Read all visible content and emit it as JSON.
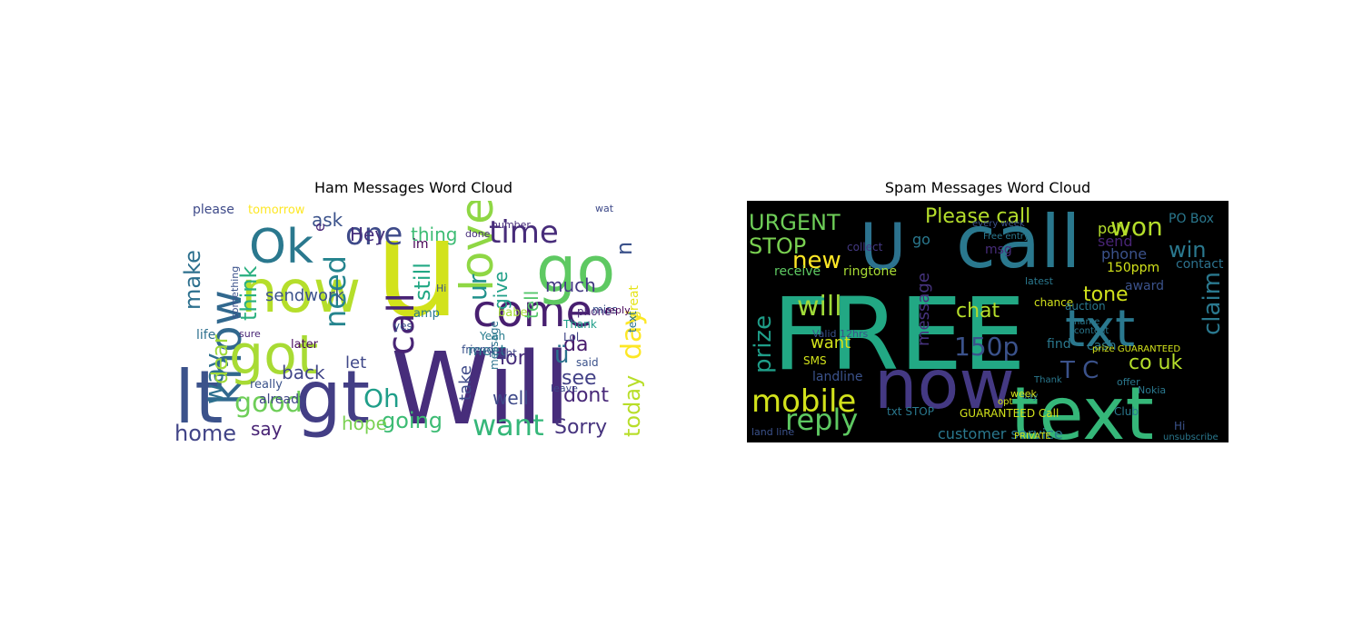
{
  "chart_data": [
    {
      "type": "wordcloud",
      "title": "Ham Messages Word Cloud",
      "background": "#ffffff",
      "palette": "viridis",
      "words": [
        {
          "text": "u",
          "color": "#d2e21b"
        },
        {
          "text": "Will",
          "color": "#472d7b"
        },
        {
          "text": "gt",
          "color": "#433e85"
        },
        {
          "text": "lt",
          "color": "#3b528b"
        },
        {
          "text": "Ok",
          "color": "#2a788e"
        },
        {
          "text": "know",
          "color": "#31688e"
        },
        {
          "text": "now",
          "color": "#b5de2b"
        },
        {
          "text": "got",
          "color": "#a8db34"
        },
        {
          "text": "come",
          "color": "#481f70"
        },
        {
          "text": "go",
          "color": "#5ec962"
        },
        {
          "text": "love",
          "color": "#8fd744"
        },
        {
          "text": "call",
          "color": "#482475"
        },
        {
          "text": "time",
          "color": "#472c7a"
        },
        {
          "text": "one",
          "color": "#3e4a89"
        },
        {
          "text": "want",
          "color": "#35b779"
        },
        {
          "text": "day",
          "color": "#fde725"
        },
        {
          "text": "need",
          "color": "#25848e"
        },
        {
          "text": "going",
          "color": "#3dbc74"
        },
        {
          "text": "good",
          "color": "#6ece58"
        },
        {
          "text": "home",
          "color": "#414487"
        },
        {
          "text": "Sorry",
          "color": "#46337e"
        },
        {
          "text": "today",
          "color": "#b8de29"
        },
        {
          "text": "still",
          "color": "#22a884"
        },
        {
          "text": "think",
          "color": "#29af7f"
        },
        {
          "text": "back",
          "color": "#404588"
        },
        {
          "text": "say",
          "color": "#482475"
        },
        {
          "text": "see",
          "color": "#424086"
        },
        {
          "text": "dont",
          "color": "#482878"
        },
        {
          "text": "ur",
          "color": "#21918c"
        },
        {
          "text": "way",
          "color": "#2d708e"
        },
        {
          "text": "n",
          "color": "#3b528b"
        },
        {
          "text": "sendwork",
          "color": "#3b528b"
        },
        {
          "text": "well",
          "color": "#3e4989"
        },
        {
          "text": "hope",
          "color": "#7ad151"
        },
        {
          "text": "Oh",
          "color": "#1f9e89"
        },
        {
          "text": "much",
          "color": "#443983"
        },
        {
          "text": "lor",
          "color": "#472d7b"
        },
        {
          "text": "da",
          "color": "#481b6d"
        },
        {
          "text": "ü",
          "color": "#2c728e"
        },
        {
          "text": "give",
          "color": "#1fa088"
        },
        {
          "text": "tell",
          "color": "#52c569"
        },
        {
          "text": "let",
          "color": "#3f4788"
        },
        {
          "text": "Hey",
          "color": "#46307e"
        },
        {
          "text": "dear",
          "color": "#a0da39"
        },
        {
          "text": "make",
          "color": "#2d708e"
        },
        {
          "text": "thing",
          "color": "#3dbc74"
        },
        {
          "text": "ask",
          "color": "#3b528b"
        },
        {
          "text": "e",
          "color": "#482677"
        },
        {
          "text": "take",
          "color": "#3e4a89"
        },
        {
          "text": "meet",
          "color": "#2a788e"
        },
        {
          "text": "im",
          "color": "#440154"
        },
        {
          "text": "please",
          "color": "#3e4a89"
        },
        {
          "text": "tomorrow",
          "color": "#fde725"
        },
        {
          "text": "already",
          "color": "#414487"
        },
        {
          "text": "really",
          "color": "#3b528b"
        },
        {
          "text": "later",
          "color": "#46085c"
        },
        {
          "text": "night",
          "color": "#404588"
        },
        {
          "text": "message",
          "color": "#2c738e"
        },
        {
          "text": "friend",
          "color": "#3b528b"
        },
        {
          "text": "Yeah",
          "color": "#287c8e"
        },
        {
          "text": "babe",
          "color": "#a5db36"
        },
        {
          "text": "Thank",
          "color": "#1f9e89"
        },
        {
          "text": "phone",
          "color": "#482475"
        },
        {
          "text": "Lol",
          "color": "#404588"
        },
        {
          "text": "miss",
          "color": "#3b528b"
        },
        {
          "text": "said",
          "color": "#3b528b"
        },
        {
          "text": "amp",
          "color": "#2a788e"
        },
        {
          "text": "wat",
          "color": "#3e4a89"
        },
        {
          "text": "done",
          "color": "#472d7b"
        },
        {
          "text": "number",
          "color": "#472c7a"
        },
        {
          "text": "Hi",
          "color": "#3b528b"
        },
        {
          "text": "life",
          "color": "#2d708e"
        },
        {
          "text": "something",
          "color": "#3b528b"
        },
        {
          "text": "great",
          "color": "#e5e419"
        },
        {
          "text": "text",
          "color": "#2c728e"
        },
        {
          "text": "reply",
          "color": "#440154"
        },
        {
          "text": "sure",
          "color": "#482475"
        },
        {
          "text": "leave",
          "color": "#3e4a89"
        },
        {
          "text": "yes",
          "color": "#3b528b"
        }
      ]
    },
    {
      "type": "wordcloud",
      "title": "Spam Messages Word Cloud",
      "background": "#000000",
      "palette": "viridis",
      "words": [
        {
          "text": "FREE",
          "color": "#22a884"
        },
        {
          "text": "now",
          "color": "#443983"
        },
        {
          "text": "text",
          "color": "#35b779"
        },
        {
          "text": "call",
          "color": "#2a788e"
        },
        {
          "text": "txt",
          "color": "#2a788e"
        },
        {
          "text": "U",
          "color": "#2c728e"
        },
        {
          "text": "mobile",
          "color": "#d2e21b"
        },
        {
          "text": "reply",
          "color": "#5ec962"
        },
        {
          "text": "claim",
          "color": "#2a788e"
        },
        {
          "text": "won",
          "color": "#b5de2b"
        },
        {
          "text": "STOP",
          "color": "#7ad151"
        },
        {
          "text": "URGENT",
          "color": "#6ece58"
        },
        {
          "text": "Please call",
          "color": "#b5de2b"
        },
        {
          "text": "win",
          "color": "#2a788e"
        },
        {
          "text": "new",
          "color": "#fde725"
        },
        {
          "text": "will",
          "color": "#a0da39"
        },
        {
          "text": "150p",
          "color": "#3b528b"
        },
        {
          "text": "chat",
          "color": "#b5de2b"
        },
        {
          "text": "tone",
          "color": "#d2e21b"
        },
        {
          "text": "prize",
          "color": "#1f9e89"
        },
        {
          "text": "T C",
          "color": "#3b528b"
        },
        {
          "text": "co uk",
          "color": "#b5de2b"
        },
        {
          "text": "message",
          "color": "#46337e"
        },
        {
          "text": "want",
          "color": "#d2e21b"
        },
        {
          "text": "customer service",
          "color": "#2a788e"
        },
        {
          "text": "ringtone",
          "color": "#a8db34"
        },
        {
          "text": "receive",
          "color": "#5ec962"
        },
        {
          "text": "go",
          "color": "#2a788e"
        },
        {
          "text": "send",
          "color": "#482475"
        },
        {
          "text": "phone",
          "color": "#3b528b"
        },
        {
          "text": "poly",
          "color": "#b5de2b"
        },
        {
          "text": "PO Box",
          "color": "#2a788e"
        },
        {
          "text": "contact U",
          "color": "#2c728e"
        },
        {
          "text": "150ppm",
          "color": "#d2e21b"
        },
        {
          "text": "award",
          "color": "#3b528b"
        },
        {
          "text": "GUARANTEED Call",
          "color": "#d2e21b"
        },
        {
          "text": "landline",
          "color": "#3b528b"
        },
        {
          "text": "SMS",
          "color": "#d2e21b"
        },
        {
          "text": "collect",
          "color": "#443983"
        },
        {
          "text": "msg",
          "color": "#472d7b"
        },
        {
          "text": "find",
          "color": "#2a788e"
        },
        {
          "text": "cash",
          "color": "#2a788e"
        },
        {
          "text": "chance",
          "color": "#d2e21b"
        },
        {
          "text": "latest",
          "color": "#2a788e"
        },
        {
          "text": "auction",
          "color": "#2a788e"
        },
        {
          "text": "prize GUARANTEED",
          "color": "#d2e21b"
        },
        {
          "text": "Valid 12hrs",
          "color": "#3b528b"
        },
        {
          "text": "Club",
          "color": "#2a788e"
        },
        {
          "text": "Nokia",
          "color": "#2a788e"
        },
        {
          "text": "offer",
          "color": "#2a788e"
        },
        {
          "text": "PRIVATE",
          "color": "#d2e21b"
        },
        {
          "text": "unsubscribe",
          "color": "#2a788e"
        },
        {
          "text": "land line",
          "color": "#3b528b"
        },
        {
          "text": "txt STOP",
          "color": "#2a788e"
        },
        {
          "text": "day",
          "color": "#2a788e"
        },
        {
          "text": "opt",
          "color": "#d2e21b"
        },
        {
          "text": "week",
          "color": "#d2e21b"
        },
        {
          "text": "Free entry",
          "color": "#2a788e"
        },
        {
          "text": "every week",
          "color": "#3b528b"
        },
        {
          "text": "Thank",
          "color": "#2a788e"
        },
        {
          "text": "Hi",
          "color": "#3b528b"
        },
        {
          "text": "name",
          "color": "#2a788e"
        },
        {
          "text": "content",
          "color": "#2a788e"
        }
      ]
    }
  ]
}
